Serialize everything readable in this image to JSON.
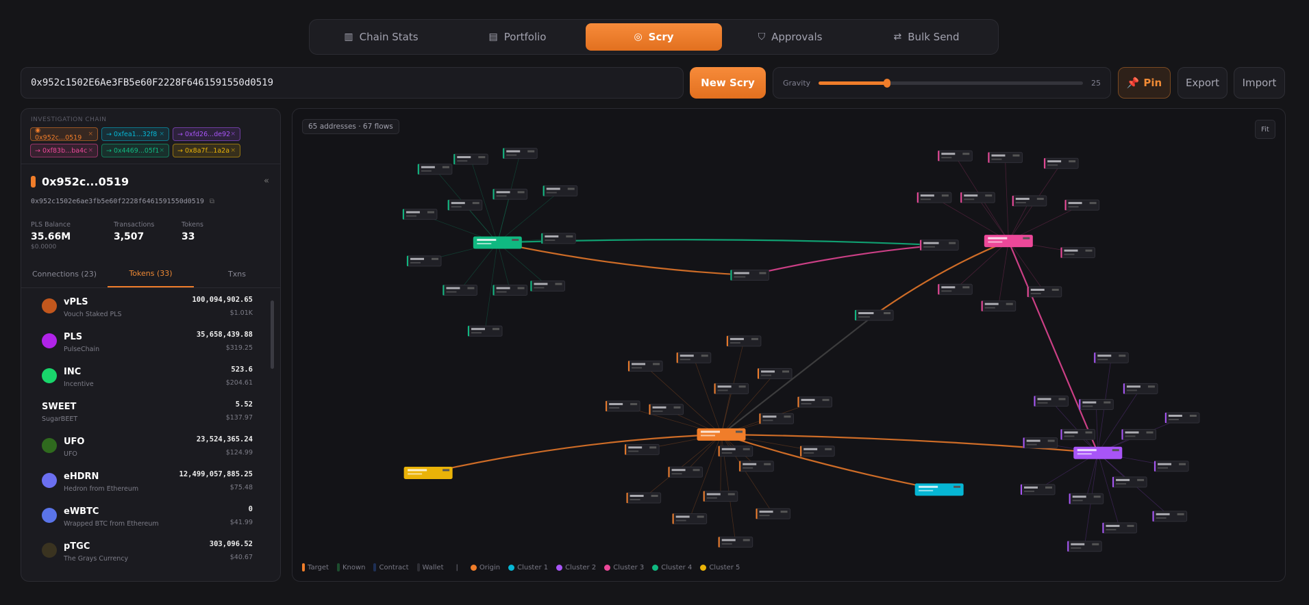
{
  "nav": {
    "tabs": [
      {
        "label": "Chain Stats",
        "icon": "bar-chart-icon"
      },
      {
        "label": "Portfolio",
        "icon": "grid-icon"
      },
      {
        "label": "Scry",
        "icon": "eye-icon",
        "active": true
      },
      {
        "label": "Approvals",
        "icon": "shield-check-icon"
      },
      {
        "label": "Bulk Send",
        "icon": "arrows-swap-icon"
      }
    ]
  },
  "search": {
    "value": "0x952c1502E6Ae3FB5e60F2228F6461591550d0519"
  },
  "toolbar": {
    "new_scry": "New Scry",
    "gravity_label": "Gravity",
    "gravity_value": "25",
    "gravity_fraction": 0.26,
    "pin": "Pin",
    "export": "Export",
    "import": "Import"
  },
  "panel": {
    "chain_label": "INVESTIGATION CHAIN",
    "chain": [
      {
        "prefix": "◉",
        "label": "0x952c...0519",
        "color": "#f07d2a"
      },
      {
        "prefix": "→",
        "label": "0xfea1...32f8",
        "color": "#06b6d4"
      },
      {
        "prefix": "→",
        "label": "0xfd26...de92",
        "color": "#a855f7"
      },
      {
        "prefix": "→",
        "label": "0xf83b...ba4c",
        "color": "#ec4899"
      },
      {
        "prefix": "→",
        "label": "0x4469...05f1",
        "color": "#10b981"
      },
      {
        "prefix": "→",
        "label": "0x8a7f...1a2a",
        "color": "#eab308"
      }
    ],
    "title": "0x952c...0519",
    "address": "0x952c1502e6ae3fb5e60f2228f6461591550d0519",
    "stats": [
      {
        "label": "PLS Balance",
        "value": "35.66M",
        "sub": "$0.0000"
      },
      {
        "label": "Transactions",
        "value": "3,507"
      },
      {
        "label": "Tokens",
        "value": "33"
      }
    ],
    "tabs": [
      {
        "label": "Connections (23)"
      },
      {
        "label": "Tokens (33)",
        "active": true
      },
      {
        "label": "Txns"
      }
    ],
    "tokens": [
      {
        "symbol": "vPLS",
        "name": "Vouch Staked PLS",
        "amount": "100,094,902.65",
        "usd": "$1.01K",
        "icon_color": "#c2571d"
      },
      {
        "symbol": "PLS",
        "name": "PulseChain",
        "amount": "35,658,439.88",
        "usd": "$319.25",
        "icon_color": "#b023e8"
      },
      {
        "symbol": "INC",
        "name": "Incentive",
        "amount": "523.6",
        "usd": "$204.61",
        "icon_color": "#19d66b"
      },
      {
        "symbol": "SWEET",
        "name": "SugarBEET",
        "amount": "5.52",
        "usd": "$137.97"
      },
      {
        "symbol": "UFO",
        "name": "UFO",
        "amount": "23,524,365.24",
        "usd": "$124.99",
        "icon_color": "#2f6a1e"
      },
      {
        "symbol": "eHDRN",
        "name": "Hedron from Ethereum",
        "amount": "12,499,057,885.25",
        "usd": "$75.48",
        "icon_color": "#6b6ff0"
      },
      {
        "symbol": "eWBTC",
        "name": "Wrapped BTC from Ethereum",
        "amount": "0",
        "usd": "$41.99",
        "icon_color": "#5a74e8"
      },
      {
        "symbol": "pTGC",
        "name": "The Grays Currency",
        "amount": "303,096.52",
        "usd": "$40.67",
        "icon_color": "#3a3320"
      }
    ]
  },
  "graph": {
    "count": "65 addresses · 67 flows",
    "fit": "Fit",
    "colors": {
      "origin": "#f07d2a",
      "cluster1": "#06b6d4",
      "cluster2": "#a855f7",
      "cluster3": "#ec4899",
      "cluster4": "#10b981",
      "cluster5": "#eab308"
    },
    "legend": {
      "types": [
        {
          "label": "Target",
          "color": "#f07d2a"
        },
        {
          "label": "Known",
          "color": "#1d4d2e"
        },
        {
          "label": "Contract",
          "color": "#1e2f55"
        },
        {
          "label": "Wallet",
          "color": "#2e2e35"
        }
      ],
      "clusters": [
        {
          "label": "Origin",
          "color": "#f07d2a"
        },
        {
          "label": "Cluster 1",
          "color": "#06b6d4"
        },
        {
          "label": "Cluster 2",
          "color": "#a855f7"
        },
        {
          "label": "Cluster 3",
          "color": "#ec4899"
        },
        {
          "label": "Cluster 4",
          "color": "#10b981"
        },
        {
          "label": "Cluster 5",
          "color": "#eab308"
        }
      ]
    }
  }
}
